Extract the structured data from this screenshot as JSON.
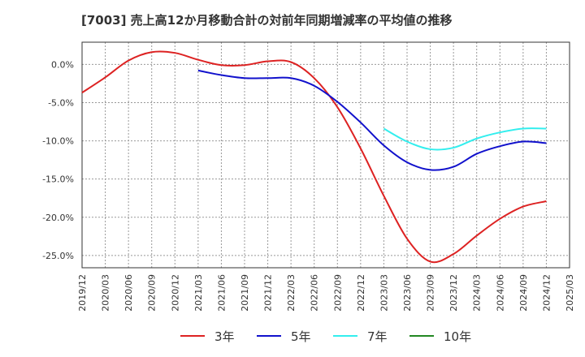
{
  "chart_data": {
    "type": "line",
    "title": "[7003]  売上高12か月移動合計の対前年同期増減率の平均値の推移",
    "xlabel": "",
    "ylabel": "",
    "x_ticks": [
      "2019/12",
      "2020/03",
      "2020/06",
      "2020/09",
      "2020/12",
      "2021/03",
      "2021/06",
      "2021/09",
      "2021/12",
      "2022/03",
      "2022/06",
      "2022/09",
      "2022/12",
      "2023/03",
      "2023/06",
      "2023/09",
      "2023/12",
      "2024/03",
      "2024/06",
      "2024/09",
      "2024/12",
      "2025/03"
    ],
    "y_ticks": [
      "0.0%",
      "-5.0%",
      "-10.0%",
      "-15.0%",
      "-20.0%",
      "-25.0%"
    ],
    "y_tick_values": [
      0,
      -5,
      -10,
      -15,
      -20,
      -25
    ],
    "ylim": [
      -26.6,
      2.9
    ],
    "grid": true,
    "legend_position": "bottom",
    "series": [
      {
        "name": "3年",
        "color": "#dd2222",
        "x": [
          "2019/12",
          "2020/03",
          "2020/06",
          "2020/09",
          "2020/12",
          "2021/03",
          "2021/06",
          "2021/09",
          "2021/12",
          "2022/03",
          "2022/06",
          "2022/09",
          "2022/12",
          "2023/03",
          "2023/06",
          "2023/09",
          "2023/12",
          "2024/03",
          "2024/06",
          "2024/09",
          "2024/12"
        ],
        "values": [
          -3.7,
          -1.7,
          0.5,
          1.6,
          1.5,
          0.6,
          -0.1,
          -0.1,
          0.4,
          0.3,
          -1.8,
          -5.6,
          -11.0,
          -17.2,
          -22.8,
          -25.8,
          -24.8,
          -22.4,
          -20.2,
          -18.6,
          -17.9
        ]
      },
      {
        "name": "5年",
        "color": "#1111cc",
        "x": [
          "2021/03",
          "2021/06",
          "2021/09",
          "2021/12",
          "2022/03",
          "2022/06",
          "2022/09",
          "2022/12",
          "2023/03",
          "2023/06",
          "2023/09",
          "2023/12",
          "2024/03",
          "2024/06",
          "2024/09",
          "2024/12"
        ],
        "values": [
          -0.8,
          -1.4,
          -1.8,
          -1.8,
          -1.8,
          -2.8,
          -4.9,
          -7.6,
          -10.6,
          -12.8,
          -13.8,
          -13.4,
          -11.7,
          -10.7,
          -10.1,
          -10.3
        ]
      },
      {
        "name": "7年",
        "color": "#33eeee",
        "x": [
          "2023/03",
          "2023/06",
          "2023/09",
          "2023/12",
          "2024/03",
          "2024/06",
          "2024/09",
          "2024/12"
        ],
        "values": [
          -8.4,
          -10.1,
          -11.1,
          -10.9,
          -9.7,
          -8.9,
          -8.4,
          -8.4
        ]
      },
      {
        "name": "10年",
        "color": "#228822",
        "x": [],
        "values": []
      }
    ]
  }
}
